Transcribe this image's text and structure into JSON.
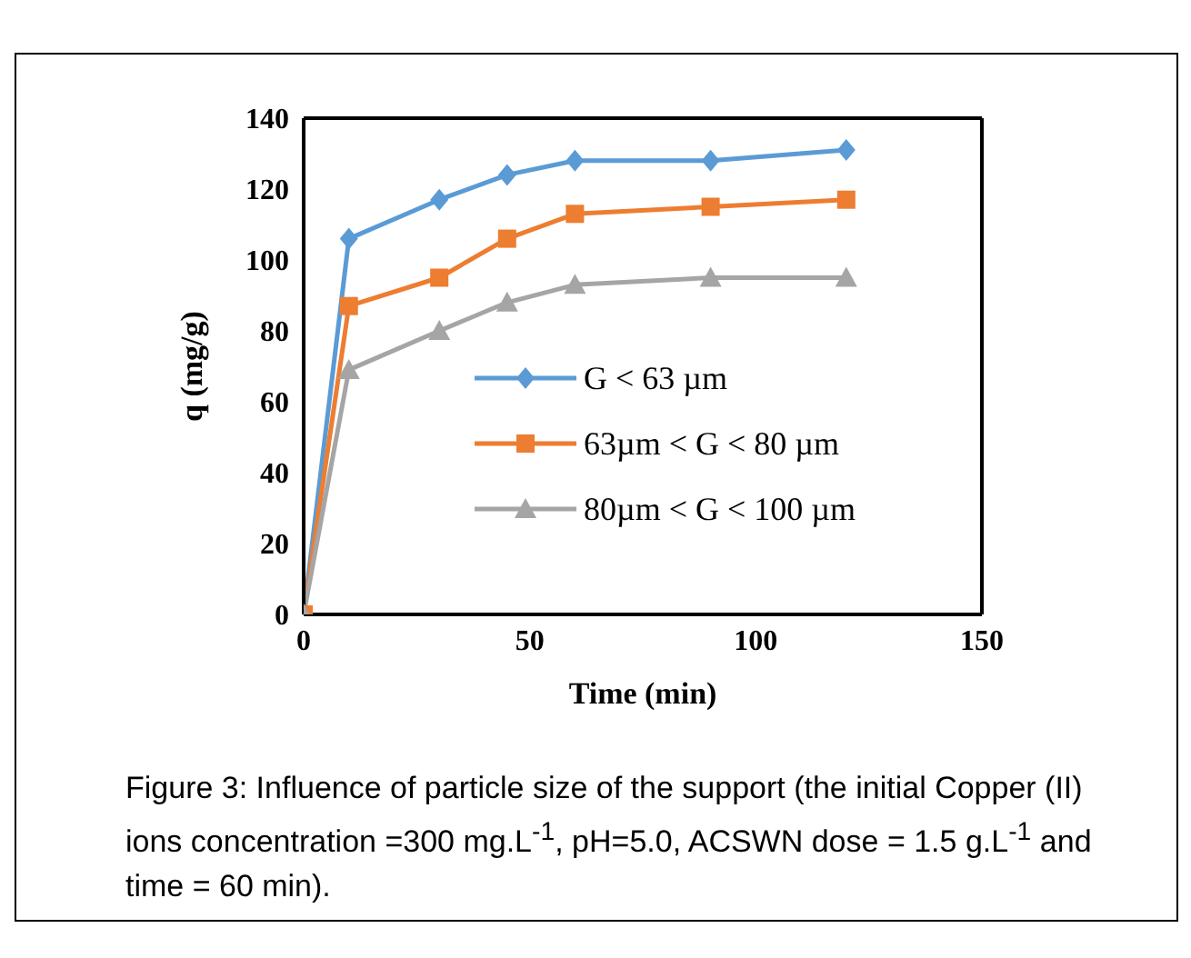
{
  "chart_data": {
    "type": "line",
    "xlabel": "Time (min)",
    "ylabel": "q (mg/g)",
    "x": [
      0,
      10,
      30,
      45,
      60,
      90,
      120
    ],
    "series": [
      {
        "name": "G < 63 µm",
        "color": "#5b9bd5",
        "marker": "diamond",
        "values": [
          0,
          106,
          117,
          124,
          128,
          128,
          131
        ]
      },
      {
        "name": "63µm < G < 80 µm",
        "color": "#ed7d31",
        "marker": "square",
        "values": [
          0,
          87,
          95,
          106,
          113,
          115,
          117
        ]
      },
      {
        "name": "80µm < G < 100 µm",
        "color": "#a5a5a5",
        "marker": "triangle",
        "values": [
          0,
          69,
          80,
          88,
          93,
          95,
          95
        ]
      }
    ],
    "xlim": [
      0,
      150
    ],
    "xticks": [
      0,
      50,
      100,
      150
    ],
    "ylim": [
      0,
      140
    ],
    "yticks": [
      0,
      20,
      40,
      60,
      80,
      100,
      120,
      140
    ],
    "grid": false,
    "legend": "right",
    "annotations": [
      "Figure 3: Influence of particle size of the support (the initial Copper (II) ions concentration =300 mg.L$^{-1}$, pH=5.0, ACSWN dose = 1.5 g.L$^{-1}$ and time = 60 min)."
    ]
  }
}
